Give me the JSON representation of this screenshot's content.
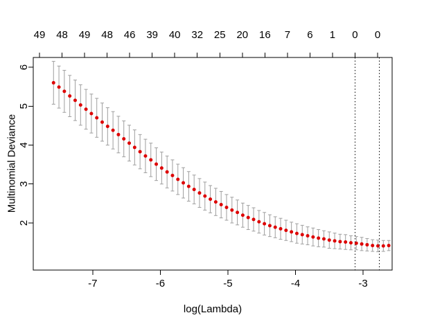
{
  "chart_data": {
    "type": "scatter",
    "title": "",
    "xlabel": "log(Lambda)",
    "ylabel": "Multinomial Deviance",
    "x_ticks": [
      -7,
      -6,
      -5,
      -4,
      -3
    ],
    "y_ticks": [
      2,
      3,
      4,
      5,
      6
    ],
    "xlim": [
      -7.88,
      -2.57
    ],
    "ylim": [
      0.79,
      6.25
    ],
    "grid": false,
    "legend": "none",
    "top_axis_labels": [
      "49",
      "48",
      "49",
      "48",
      "46",
      "39",
      "40",
      "32",
      "25",
      "20",
      "16",
      "7",
      "6",
      "1",
      "0",
      "0"
    ],
    "vlines": [
      -3.12,
      -2.76
    ],
    "point_color": "#dd0000",
    "errorbar_color": "#9e9e9e",
    "axis_color": "#000000",
    "x": [
      -7.58,
      -7.5,
      -7.42,
      -7.34,
      -7.26,
      -7.18,
      -7.1,
      -7.02,
      -6.94,
      -6.86,
      -6.78,
      -6.7,
      -6.62,
      -6.54,
      -6.46,
      -6.38,
      -6.3,
      -6.22,
      -6.14,
      -6.06,
      -5.98,
      -5.9,
      -5.82,
      -5.74,
      -5.66,
      -5.58,
      -5.5,
      -5.42,
      -5.34,
      -5.26,
      -5.18,
      -5.1,
      -5.02,
      -4.94,
      -4.86,
      -4.78,
      -4.7,
      -4.62,
      -4.54,
      -4.46,
      -4.38,
      -4.3,
      -4.22,
      -4.14,
      -4.06,
      -3.98,
      -3.9,
      -3.82,
      -3.74,
      -3.66,
      -3.58,
      -3.5,
      -3.42,
      -3.34,
      -3.26,
      -3.18,
      -3.1,
      -3.02,
      -2.94,
      -2.86,
      -2.78,
      -2.7,
      -2.62
    ],
    "y": [
      5.6,
      5.49,
      5.38,
      5.26,
      5.15,
      5.03,
      4.92,
      4.81,
      4.7,
      4.59,
      4.48,
      4.38,
      4.27,
      4.16,
      4.05,
      3.94,
      3.83,
      3.72,
      3.62,
      3.51,
      3.41,
      3.31,
      3.22,
      3.12,
      3.03,
      2.94,
      2.86,
      2.77,
      2.69,
      2.61,
      2.54,
      2.47,
      2.4,
      2.33,
      2.27,
      2.2,
      2.14,
      2.09,
      2.03,
      1.98,
      1.93,
      1.89,
      1.85,
      1.81,
      1.77,
      1.73,
      1.7,
      1.67,
      1.64,
      1.61,
      1.59,
      1.56,
      1.54,
      1.52,
      1.51,
      1.49,
      1.48,
      1.46,
      1.44,
      1.42,
      1.41,
      1.41,
      1.42
    ],
    "err": [
      0.55,
      0.54,
      0.54,
      0.53,
      0.52,
      0.52,
      0.51,
      0.5,
      0.5,
      0.49,
      0.48,
      0.48,
      0.47,
      0.46,
      0.46,
      0.45,
      0.44,
      0.43,
      0.43,
      0.42,
      0.41,
      0.41,
      0.4,
      0.39,
      0.39,
      0.38,
      0.37,
      0.37,
      0.36,
      0.35,
      0.35,
      0.34,
      0.33,
      0.33,
      0.32,
      0.31,
      0.31,
      0.3,
      0.29,
      0.29,
      0.28,
      0.27,
      0.27,
      0.26,
      0.25,
      0.25,
      0.24,
      0.23,
      0.23,
      0.22,
      0.21,
      0.21,
      0.2,
      0.19,
      0.19,
      0.18,
      0.17,
      0.17,
      0.16,
      0.15,
      0.15,
      0.14,
      0.13
    ]
  }
}
